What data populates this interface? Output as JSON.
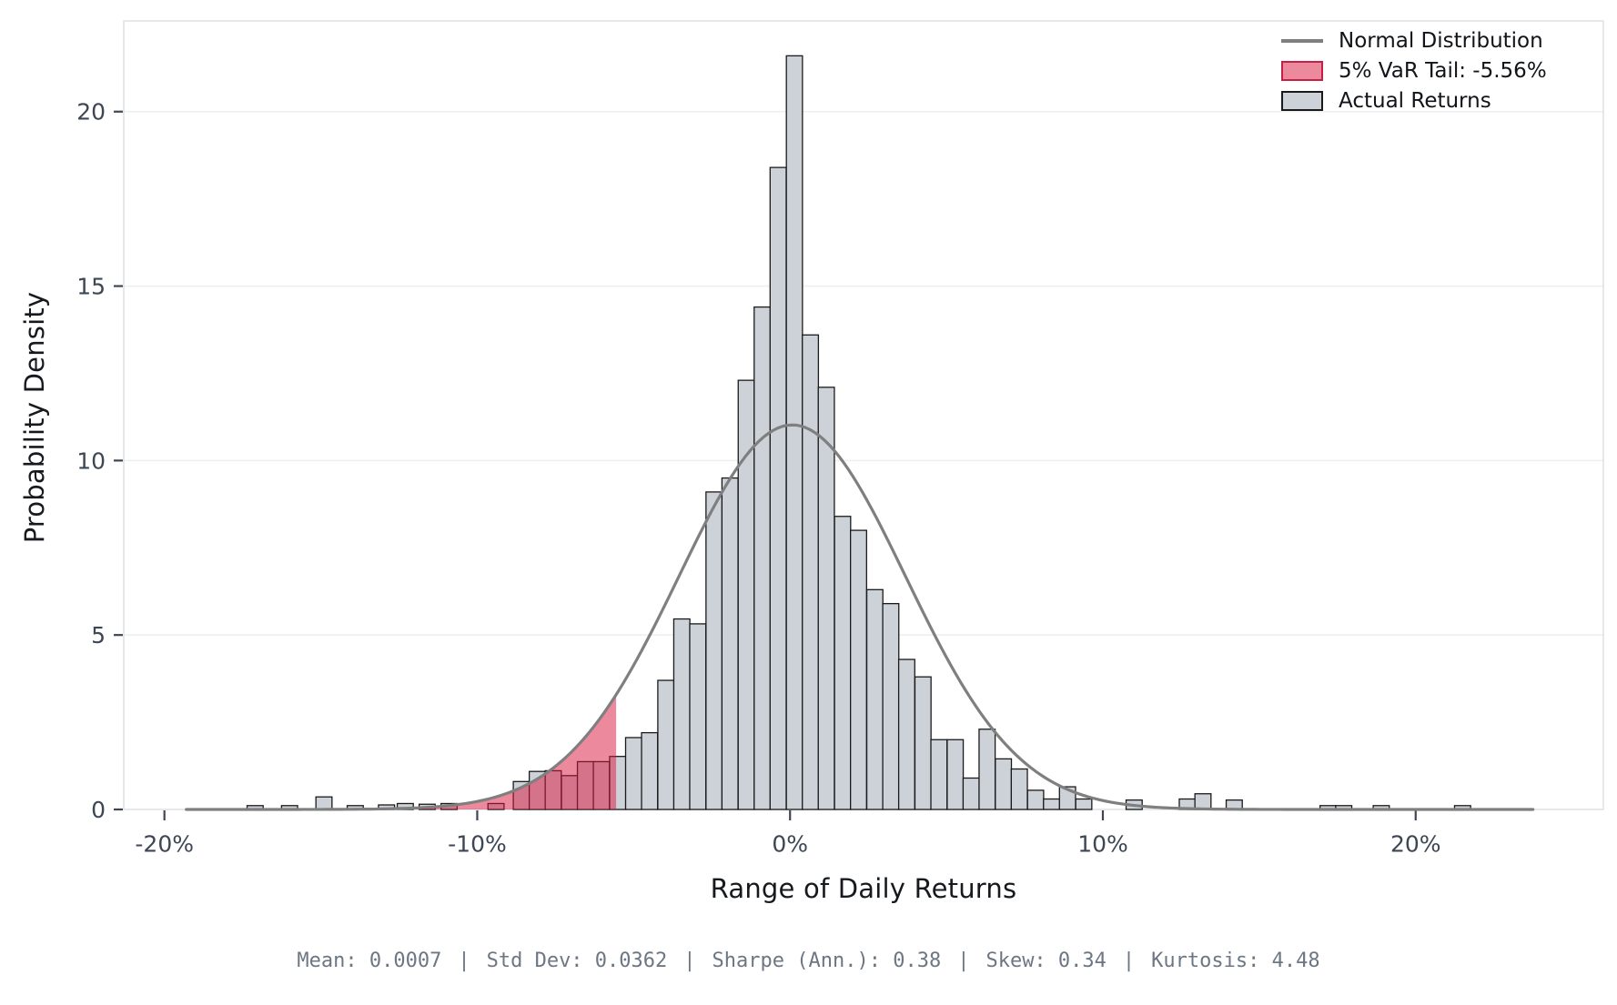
{
  "chart_data": {
    "type": "histogram",
    "title": "",
    "xlabel": "Range of Daily Returns",
    "ylabel": "Probability Density",
    "grid": "horizontal",
    "xlim_pct": [
      -21.3,
      26.0
    ],
    "ylim": [
      0,
      22.6
    ],
    "x_ticks": [
      {
        "value": -20,
        "label": "-20%"
      },
      {
        "value": -10,
        "label": "-10%"
      },
      {
        "value": 0,
        "label": "0%"
      },
      {
        "value": 10,
        "label": "10%"
      },
      {
        "value": 20,
        "label": "20%"
      }
    ],
    "y_ticks": [
      {
        "value": 0,
        "label": "0"
      },
      {
        "value": 5,
        "label": "5"
      },
      {
        "value": 10,
        "label": "10"
      },
      {
        "value": 15,
        "label": "15"
      },
      {
        "value": 20,
        "label": "20"
      }
    ],
    "bin_width_pct": 0.514,
    "bars_center_height": [
      [
        -17.1,
        0.11
      ],
      [
        -16.0,
        0.11
      ],
      [
        -14.9,
        0.36
      ],
      [
        -13.9,
        0.11
      ],
      [
        -12.9,
        0.13
      ],
      [
        -12.3,
        0.17
      ],
      [
        -11.6,
        0.15
      ],
      [
        -10.9,
        0.17
      ],
      [
        -9.4,
        0.17
      ],
      [
        -8.59,
        0.8
      ],
      [
        -8.08,
        1.09
      ],
      [
        -7.57,
        1.11
      ],
      [
        -7.05,
        0.97
      ],
      [
        -6.54,
        1.37
      ],
      [
        -6.03,
        1.37
      ],
      [
        -5.51,
        1.52
      ],
      [
        -5.0,
        2.06
      ],
      [
        -4.49,
        2.2
      ],
      [
        -3.97,
        3.7
      ],
      [
        -3.46,
        5.46
      ],
      [
        -2.95,
        5.32
      ],
      [
        -2.43,
        9.1
      ],
      [
        -1.92,
        9.5
      ],
      [
        -1.4,
        12.3
      ],
      [
        -0.89,
        14.4
      ],
      [
        -0.38,
        18.4
      ],
      [
        0.14,
        21.6
      ],
      [
        0.65,
        13.6
      ],
      [
        1.16,
        12.1
      ],
      [
        1.68,
        8.4
      ],
      [
        2.19,
        8.0
      ],
      [
        2.71,
        6.3
      ],
      [
        3.22,
        5.9
      ],
      [
        3.73,
        4.3
      ],
      [
        4.25,
        3.8
      ],
      [
        4.76,
        2.0
      ],
      [
        5.28,
        2.0
      ],
      [
        5.79,
        0.9
      ],
      [
        6.3,
        2.3
      ],
      [
        6.82,
        1.45
      ],
      [
        7.33,
        1.16
      ],
      [
        7.85,
        0.55
      ],
      [
        8.36,
        0.3
      ],
      [
        8.87,
        0.65
      ],
      [
        9.39,
        0.3
      ],
      [
        11.0,
        0.27
      ],
      [
        12.7,
        0.3
      ],
      [
        13.2,
        0.45
      ],
      [
        14.2,
        0.27
      ],
      [
        17.2,
        0.11
      ],
      [
        17.7,
        0.11
      ],
      [
        18.9,
        0.11
      ],
      [
        21.5,
        0.11
      ]
    ],
    "normal_curve": {
      "mean_pct": 0.07,
      "std_pct": 3.62,
      "x_start_pct": -19.3,
      "x_end_pct": 23.8
    },
    "var_cutoff_pct": -5.56,
    "legend": [
      {
        "label": "Normal Distribution",
        "swatch": "line"
      },
      {
        "label": "5% VaR Tail: -5.56%",
        "swatch": "red-patch"
      },
      {
        "label": "Actual Returns",
        "swatch": "gray-patch"
      }
    ],
    "colors": {
      "bar_fill": "#cdd2d8",
      "bar_edge": "#1a1a1a",
      "curve": "#7f7f7f",
      "var_fill": "#DC143C",
      "var_fill_opacity": 0.5,
      "var_edge": "#c22045",
      "gridline": "#efefef",
      "spine": "#dfe2e6",
      "tick_mark": "#3d4653",
      "tick_label": "#3d4653"
    },
    "stats": {
      "items": [
        "Mean: 0.0007",
        "Std Dev: 0.0362",
        "Sharpe (Ann.): 0.38",
        "Skew: 0.34",
        "Kurtosis: 4.48"
      ],
      "separator": "|"
    }
  }
}
